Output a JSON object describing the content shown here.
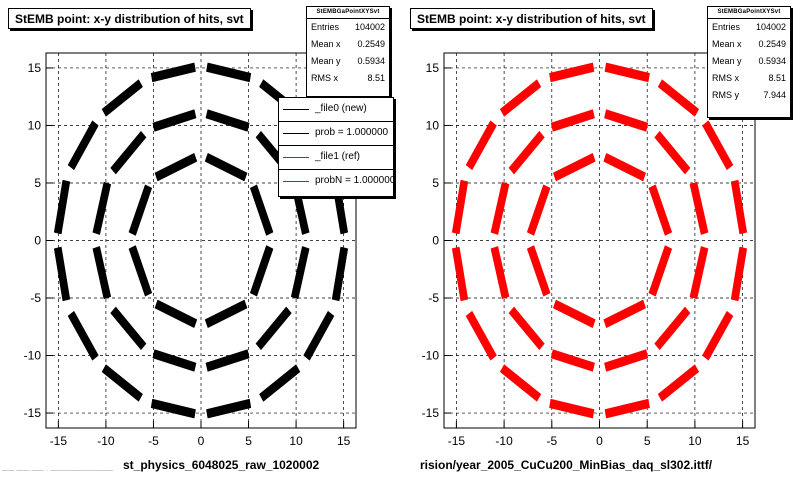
{
  "chart_data": [
    {
      "type": "scatter",
      "title": "StEMB point: x-y distribution of hits, svt",
      "xlabel": "st_physics_6048025_raw_1020002",
      "ylabel": "",
      "xlim": [
        -16.3,
        16.3
      ],
      "ylim": [
        -16.3,
        16.3
      ],
      "xticks": [
        -15,
        -10,
        -5,
        0,
        5,
        10,
        15
      ],
      "yticks": [
        -15,
        -10,
        -5,
        0,
        5,
        10,
        15
      ],
      "grid": true,
      "marker_color": "#000000",
      "ring_radii": [
        6.9,
        10.8,
        14.9
      ],
      "ring_ladders": [
        8,
        12,
        16
      ],
      "stats": {
        "header": "StEMBGaPointXYSvt",
        "entries": "104002",
        "mean_x": "0.2549",
        "mean_y": "0.5934",
        "rms_x": "8.51",
        "rms_y": ""
      },
      "legend": {
        "placement": "right",
        "entries": [
          {
            "label": "_file0 (new)",
            "color": "#000000"
          },
          {
            "label": "prob = 1.000000",
            "color": "#000000"
          },
          {
            "label": "_file1 (ref)",
            "color": "#ff0000"
          },
          {
            "label": "probN = 1.000000",
            "color": "#ff0000"
          }
        ]
      }
    },
    {
      "type": "scatter",
      "title": "StEMB point: x-y distribution of hits, svt",
      "xlabel": "rision/year_2005_CuCu200_MinBias_daq_sl302.ittf/",
      "ylabel": "",
      "xlim": [
        -16.3,
        16.3
      ],
      "ylim": [
        -16.3,
        16.3
      ],
      "xticks": [
        -15,
        -10,
        -5,
        0,
        5,
        10,
        15
      ],
      "yticks": [
        -15,
        -10,
        -5,
        0,
        5,
        10,
        15
      ],
      "grid": true,
      "marker_color": "#ff0000",
      "ring_radii": [
        6.9,
        10.8,
        14.9
      ],
      "ring_ladders": [
        8,
        12,
        16
      ],
      "stats": {
        "header": "StEMBGaPointXYSvt",
        "entries": "104002",
        "mean_x": "0.2549",
        "mean_y": "0.5934",
        "rms_x": "8.51",
        "rms_y": "7.944"
      }
    }
  ],
  "labels": {
    "entries": "Entries",
    "mean_x": "Mean x",
    "mean_y": "Mean y",
    "rms_x": "RMS x",
    "rms_y": "RMS y"
  },
  "footer_note": "—— ——·—— · ——————————"
}
